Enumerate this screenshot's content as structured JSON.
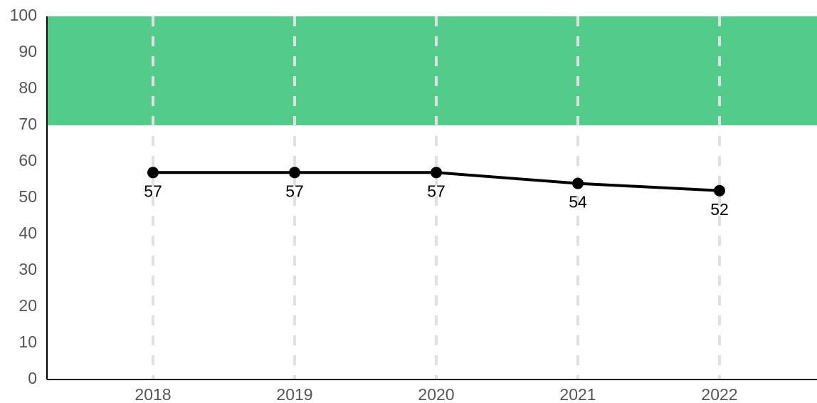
{
  "chart_data": {
    "type": "line",
    "categories": [
      "2018",
      "2019",
      "2020",
      "2021",
      "2022"
    ],
    "values": [
      57,
      57,
      57,
      54,
      52
    ],
    "color": "#000000",
    "ylim": [
      0,
      100
    ],
    "yticks": [
      0,
      10,
      20,
      30,
      40,
      50,
      60,
      70,
      80,
      90,
      100
    ],
    "band": {
      "from": 70,
      "to": 100,
      "color": "#53cb8a"
    },
    "grid": true
  }
}
